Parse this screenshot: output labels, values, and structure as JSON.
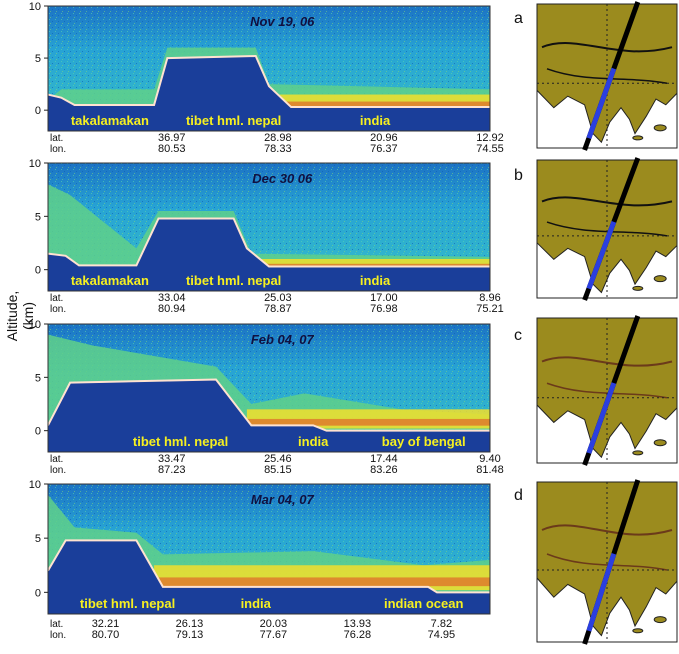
{
  "y_axis_label": "Altitude, (km)",
  "colors": {
    "sky": "#2fb0d8",
    "ground": "#1a3e9a",
    "surface": "#1040a0",
    "aerosol_yellow": "#f3df2a",
    "aerosol_red": "#e04525",
    "label_yellow": "#f6f020",
    "map_land": "#9b8b1e",
    "map_border_dark": "#111111",
    "map_border_brown": "#6b3a1a",
    "track_black": "#000000",
    "track_blue": "#2b3fe0"
  },
  "chart_data": [
    {
      "type": "heatmap",
      "panel": "a",
      "date": "Nov 19, 06",
      "yticks": [
        "10",
        "5",
        "0"
      ],
      "ylim": [
        -2,
        10
      ],
      "row_labels": [
        "lat.",
        "lon."
      ],
      "lat": [
        "36.97",
        "28.98",
        "20.96",
        "12.92"
      ],
      "lon": [
        "80.53",
        "78.33",
        "76.37",
        "74.55"
      ],
      "regions": [
        "takalamakan",
        "tibet hml. nepal",
        "india"
      ],
      "terrain": [
        [
          0,
          1.5
        ],
        [
          3,
          1.2
        ],
        [
          6,
          0.5
        ],
        [
          24,
          0.5
        ],
        [
          27,
          5
        ],
        [
          47,
          5.2
        ],
        [
          50,
          2.3
        ],
        [
          55,
          0.3
        ],
        [
          100,
          0.3
        ]
      ],
      "aerosol_top": [
        [
          0,
          1
        ],
        [
          3,
          2
        ],
        [
          24,
          2
        ],
        [
          27,
          6
        ],
        [
          47,
          6
        ],
        [
          50,
          2.5
        ],
        [
          100,
          2
        ]
      ],
      "haze": [
        [
          52,
          100,
          1.5
        ]
      ]
    },
    {
      "type": "heatmap",
      "panel": "b",
      "date": "Dec 30 06",
      "yticks": [
        "10",
        "5",
        "0"
      ],
      "ylim": [
        -2,
        10
      ],
      "row_labels": [
        "lat.",
        "lon."
      ],
      "lat": [
        "33.04",
        "25.03",
        "17.00",
        "8.96"
      ],
      "lon": [
        "80.94",
        "78.87",
        "76.98",
        "75.21"
      ],
      "regions": [
        "takalamakan",
        "tibet hml. nepal",
        "india"
      ],
      "terrain": [
        [
          0,
          1.5
        ],
        [
          4,
          1.3
        ],
        [
          7,
          0.4
        ],
        [
          20,
          0.4
        ],
        [
          25,
          4.8
        ],
        [
          42,
          4.8
        ],
        [
          45,
          2
        ],
        [
          50,
          0.3
        ],
        [
          100,
          0.3
        ]
      ],
      "aerosol_top": [
        [
          0,
          8
        ],
        [
          5,
          7
        ],
        [
          20,
          2
        ],
        [
          25,
          5.5
        ],
        [
          42,
          5.5
        ],
        [
          46,
          1.5
        ],
        [
          100,
          1.2
        ]
      ],
      "haze": [
        [
          48,
          100,
          1
        ]
      ]
    },
    {
      "type": "heatmap",
      "panel": "c",
      "date": "Feb 04, 07",
      "yticks": [
        "10",
        "5",
        "0"
      ],
      "ylim": [
        -2,
        10
      ],
      "row_labels": [
        "lat.",
        "lon."
      ],
      "lat": [
        "33.47",
        "25.46",
        "17.44",
        "9.40"
      ],
      "lon": [
        "87.23",
        "85.15",
        "83.26",
        "81.48"
      ],
      "regions": [
        "tibet hml. nepal",
        "india",
        "bay of bengal"
      ],
      "terrain": [
        [
          0,
          0.5
        ],
        [
          5,
          4.5
        ],
        [
          38,
          4.8
        ],
        [
          46,
          0.5
        ],
        [
          60,
          0.5
        ],
        [
          63,
          0
        ],
        [
          100,
          0
        ]
      ],
      "aerosol_top": [
        [
          0,
          9
        ],
        [
          10,
          8
        ],
        [
          38,
          6
        ],
        [
          46,
          2.5
        ],
        [
          58,
          3.5
        ],
        [
          80,
          2
        ],
        [
          100,
          1.5
        ]
      ],
      "haze": [
        [
          45,
          100,
          2
        ]
      ]
    },
    {
      "type": "heatmap",
      "panel": "d",
      "date": "Mar 04, 07",
      "yticks": [
        "10",
        "5",
        "0"
      ],
      "ylim": [
        -2,
        10
      ],
      "row_labels": [
        "lat.",
        "lon."
      ],
      "lat": [
        "32.21",
        "26.13",
        "20.03",
        "13.93",
        "7.82"
      ],
      "lon": [
        "80.70",
        "79.13",
        "77.67",
        "76.28",
        "74.95"
      ],
      "regions": [
        "tibet hml. nepal",
        "india",
        "indian ocean"
      ],
      "terrain": [
        [
          0,
          2
        ],
        [
          4,
          4.8
        ],
        [
          20,
          4.8
        ],
        [
          26,
          0.5
        ],
        [
          86,
          0.5
        ],
        [
          88,
          0
        ],
        [
          100,
          0
        ]
      ],
      "aerosol_top": [
        [
          0,
          9
        ],
        [
          6,
          6
        ],
        [
          20,
          5.5
        ],
        [
          26,
          3.5
        ],
        [
          60,
          3.8
        ],
        [
          85,
          2.5
        ],
        [
          100,
          3
        ]
      ],
      "haze": [
        [
          24,
          100,
          2.5
        ]
      ]
    }
  ],
  "map_labels": [
    "a",
    "b",
    "c",
    "d"
  ]
}
